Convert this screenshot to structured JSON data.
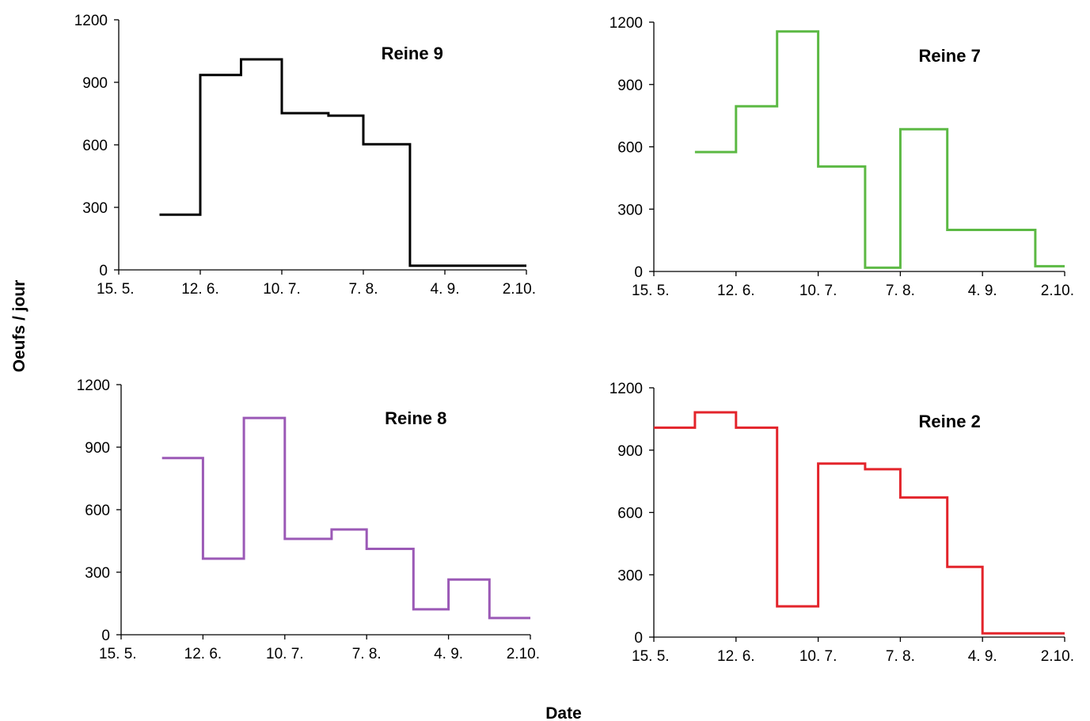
{
  "figure": {
    "ylabel": "Oeufs / jour",
    "xlabel": "Date"
  },
  "chart_data": [
    {
      "type": "line",
      "step": "post",
      "title": "Reine 9",
      "color": "#000000",
      "x_ticks": [
        "15. 5.",
        "12. 6.",
        "10. 7.",
        "7. 8.",
        "4. 9.",
        "2.10."
      ],
      "y_ticks": [
        "0",
        "300",
        "600",
        "900",
        "1200"
      ],
      "ylim": [
        0,
        1200
      ],
      "xlim": [
        "15. 5.",
        "2.10."
      ],
      "x": [
        "29. 5.",
        "12. 6.",
        "26. 6.",
        "10. 7.",
        "26. 7.",
        "7. 8.",
        "23. 8.",
        "2.10."
      ],
      "y": [
        265,
        935,
        1010,
        752,
        740,
        603,
        20,
        20
      ]
    },
    {
      "type": "line",
      "step": "post",
      "title": "Reine 7",
      "color": "#5cb944",
      "x_ticks": [
        "15. 5.",
        "12. 6.",
        "10. 7.",
        "7. 8.",
        "4. 9.",
        "2.10."
      ],
      "y_ticks": [
        "0",
        "300",
        "600",
        "900",
        "1200"
      ],
      "ylim": [
        0,
        1200
      ],
      "xlim": [
        "15. 5.",
        "2.10."
      ],
      "x": [
        "29. 5.",
        "12. 6.",
        "26. 6.",
        "10. 7.",
        "26. 7.",
        "7. 8.",
        "23. 8.",
        "22. 9.",
        "2.10."
      ],
      "y": [
        575,
        795,
        1155,
        505,
        18,
        685,
        200,
        25,
        25
      ]
    },
    {
      "type": "line",
      "step": "post",
      "title": "Reine 8",
      "color": "#9b59b6",
      "x_ticks": [
        "15. 5.",
        "12. 6.",
        "10. 7.",
        "7. 8.",
        "4. 9.",
        "2.10."
      ],
      "y_ticks": [
        "0",
        "300",
        "600",
        "900",
        "1200"
      ],
      "ylim": [
        0,
        1200
      ],
      "xlim": [
        "15. 5.",
        "2.10."
      ],
      "x": [
        "29. 5.",
        "12. 6.",
        "26. 6.",
        "10. 7.",
        "26. 7.",
        "7. 8.",
        "23. 8.",
        "4. 9.",
        "18. 9.",
        "2.10."
      ],
      "y": [
        848,
        365,
        1040,
        460,
        505,
        412,
        122,
        265,
        80,
        80
      ]
    },
    {
      "type": "line",
      "step": "post",
      "title": "Reine 2",
      "color": "#e3242b",
      "x_ticks": [
        "15. 5.",
        "12. 6.",
        "10. 7.",
        "7. 8.",
        "4. 9.",
        "2.10."
      ],
      "y_ticks": [
        "0",
        "300",
        "600",
        "900",
        "1200"
      ],
      "ylim": [
        0,
        1200
      ],
      "xlim": [
        "15. 5.",
        "2.10."
      ],
      "x": [
        "15. 5.",
        "29. 5.",
        "12. 6.",
        "26. 6.",
        "10. 7.",
        "26. 7.",
        "7. 8.",
        "23. 8.",
        "4. 9.",
        "2.10."
      ],
      "y": [
        1008,
        1082,
        1008,
        148,
        835,
        808,
        672,
        338,
        18,
        18
      ]
    }
  ]
}
